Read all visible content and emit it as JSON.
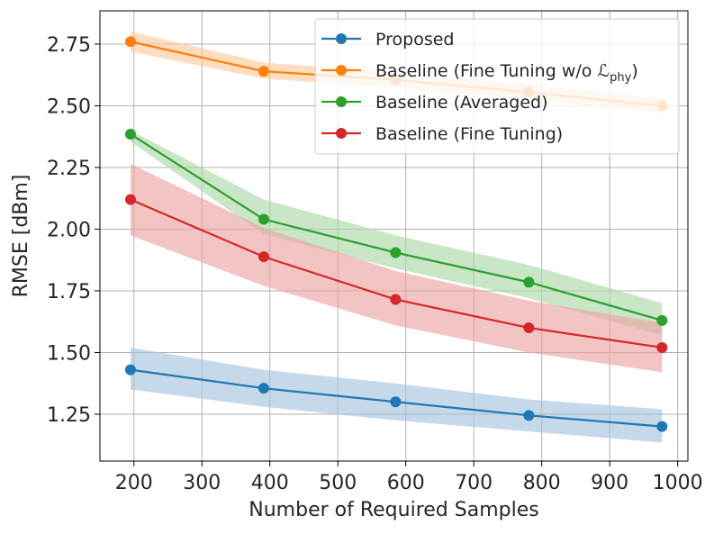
{
  "chart_data": {
    "type": "line",
    "title": "",
    "xlabel": "Number of Required Samples",
    "ylabel": "RMSE [dBm]",
    "xlim": [
      150,
      1015
    ],
    "ylim": [
      1.06,
      2.885
    ],
    "xticks": [
      200,
      300,
      400,
      500,
      600,
      700,
      800,
      900,
      1000
    ],
    "xtick_labels": [
      "200",
      "300",
      "400",
      "500",
      "600",
      "700",
      "800",
      "900",
      "1000"
    ],
    "yticks": [
      1.25,
      1.5,
      1.75,
      2.0,
      2.25,
      2.5,
      2.75
    ],
    "ytick_labels": [
      "1.25",
      "1.50",
      "1.75",
      "2.00",
      "2.25",
      "2.50",
      "2.75"
    ],
    "grid": true,
    "legend_position": "top-right",
    "x": [
      195,
      391,
      585,
      781,
      977
    ],
    "series": [
      {
        "name": "Proposed",
        "legend_main": "Proposed",
        "legend_sub": "",
        "legend_tail": "",
        "color": "#1f77b4",
        "band_color": "#a6c4e0",
        "values": [
          1.43,
          1.355,
          1.3,
          1.245,
          1.2
        ],
        "lower": [
          1.35,
          1.28,
          1.225,
          1.18,
          1.135
        ],
        "upper": [
          1.52,
          1.43,
          1.375,
          1.31,
          1.27
        ]
      },
      {
        "name": "Baseline (Fine Tuning w/o ℒphy)",
        "legend_main": "Baseline (Fine Tuning w/o ℒ",
        "legend_sub": "phy",
        "legend_tail": ")",
        "color": "#ff7f0e",
        "band_color": "#ffcb9b",
        "values": [
          2.76,
          2.64,
          2.605,
          2.555,
          2.5
        ],
        "lower": [
          2.72,
          2.61,
          2.575,
          2.525,
          2.47
        ],
        "upper": [
          2.8,
          2.675,
          2.635,
          2.585,
          2.53
        ]
      },
      {
        "name": "Baseline (Averaged)",
        "legend_main": "Baseline (Averaged)",
        "legend_sub": "",
        "legend_tail": "",
        "color": "#2ca02c",
        "band_color": "#acd8a8",
        "values": [
          2.385,
          2.04,
          1.905,
          1.785,
          1.63
        ],
        "lower": [
          2.355,
          1.98,
          1.84,
          1.72,
          1.57
        ],
        "upper": [
          2.4,
          2.12,
          1.975,
          1.855,
          1.7
        ]
      },
      {
        "name": "Baseline (Fine Tuning)",
        "legend_main": "Baseline (Fine Tuning)",
        "legend_sub": "",
        "legend_tail": "",
        "color": "#d62728",
        "band_color": "#eda4a4",
        "values": [
          2.12,
          1.888,
          1.715,
          1.6,
          1.52
        ],
        "lower": [
          1.975,
          1.77,
          1.61,
          1.5,
          1.42
        ],
        "upper": [
          2.265,
          2.005,
          1.83,
          1.71,
          1.62
        ]
      }
    ]
  }
}
